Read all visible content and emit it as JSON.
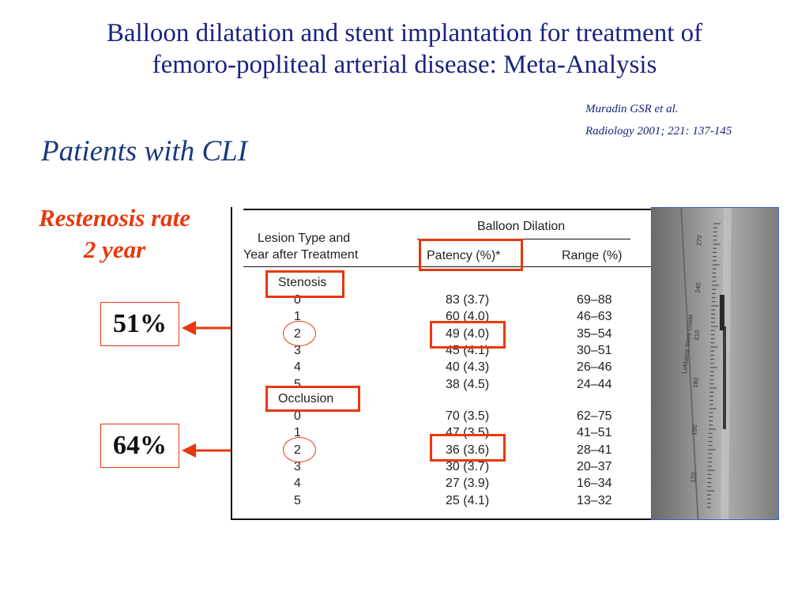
{
  "slide": {
    "title_line1": "Balloon dilatation and stent implantation for treatment of",
    "title_line2": "femoro-popliteal arterial disease: Meta-Analysis",
    "citation_line1": "Muradin GSR et al.",
    "citation_line2": "Radiology 2001; 221: 137-145",
    "subtitle": "Patients with CLI",
    "restenosis_line1": "Restenosis rate",
    "restenosis_line2": "2 year",
    "stenosis_pct": "51%",
    "occlusion_pct": "64%"
  },
  "table": {
    "col1_header_line1": "Lesion Type and",
    "col1_header_line2": "Year after Treatment",
    "group_header": "Balloon Dilation",
    "col2_header": "Patency (%)*",
    "col3_header": "Range (%)",
    "sections": [
      {
        "label": "Stenosis",
        "rows": [
          {
            "year": "0",
            "patency": "83 (3.7)",
            "range": "69–88"
          },
          {
            "year": "1",
            "patency": "60 (4.0)",
            "range": "46–63"
          },
          {
            "year": "2",
            "patency": "49 (4.0)",
            "range": "35–54"
          },
          {
            "year": "3",
            "patency": "45 (4.1)",
            "range": "30–51"
          },
          {
            "year": "4",
            "patency": "40 (4.3)",
            "range": "26–46"
          },
          {
            "year": "5",
            "patency": "38 (4.5)",
            "range": "24–44"
          }
        ]
      },
      {
        "label": "Occlusion",
        "rows": [
          {
            "year": "0",
            "patency": "70 (3.5)",
            "range": "62–75"
          },
          {
            "year": "1",
            "patency": "47 (3.5)",
            "range": "41–51"
          },
          {
            "year": "2",
            "patency": "36 (3.6)",
            "range": "28–41"
          },
          {
            "year": "3",
            "patency": "30 (3.7)",
            "range": "20–37"
          },
          {
            "year": "4",
            "patency": "27 (3.9)",
            "range": "16–34"
          },
          {
            "year": "5",
            "patency": "25 (4.1)",
            "range": "13–32"
          }
        ]
      }
    ]
  },
  "xray": {
    "catheter_text": "LeMaitre Stent Guide",
    "ruler_labels": [
      "270",
      "240",
      "210",
      "180",
      "150",
      "120"
    ]
  },
  "colors": {
    "title": "#1a237e",
    "accent_red": "#e8380d",
    "xray_border": "#3a5fc8"
  }
}
